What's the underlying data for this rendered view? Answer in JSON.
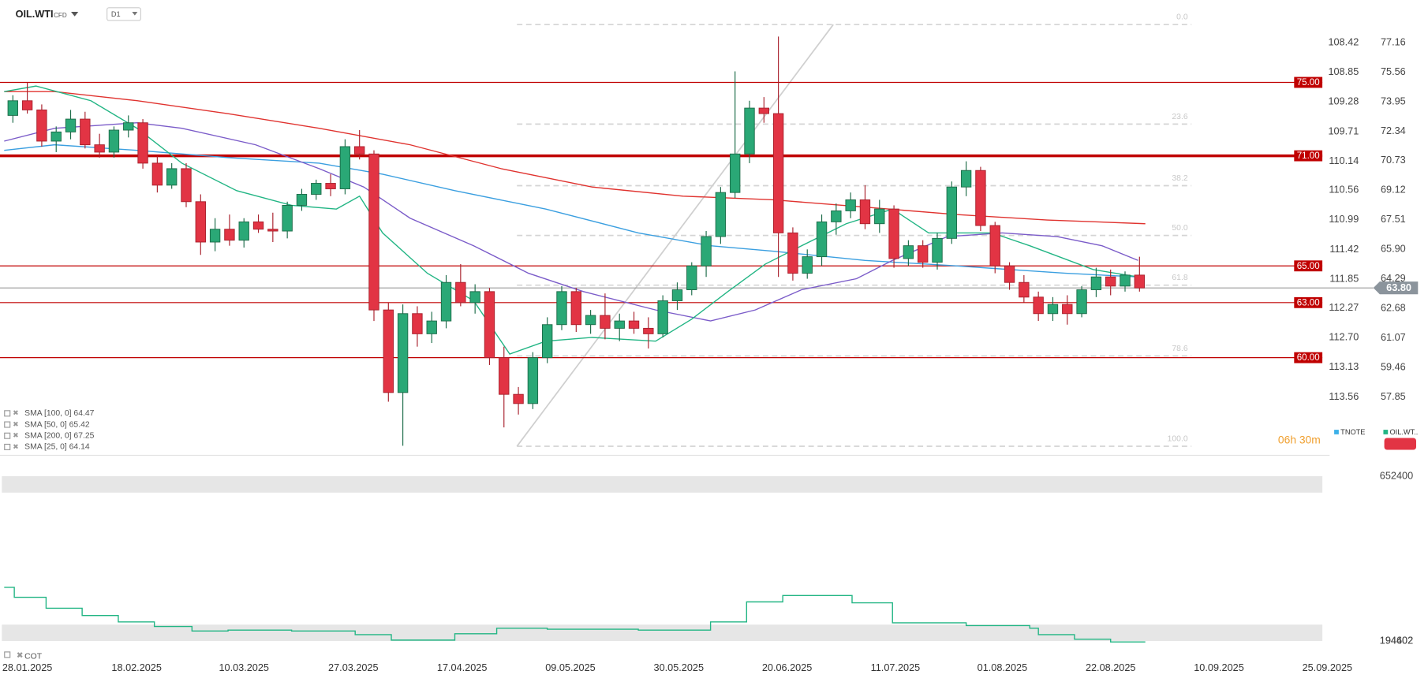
{
  "chart_data": [
    {
      "type": "candlestick",
      "symbol": "OIL.WTI",
      "instrument": "CFD",
      "timeframe": "D1",
      "up_color": "#2aa876",
      "down_color": "#e23444",
      "grid": false,
      "xlim": [
        -0.89,
        90.66
      ],
      "xticks": [
        {
          "value": 1.0,
          "label": "28.01.2025"
        },
        {
          "value": 8.57,
          "label": "18.02.2025"
        },
        {
          "value": 16.0,
          "label": "10.03.2025"
        },
        {
          "value": 23.57,
          "label": "27.03.2025"
        },
        {
          "value": 31.1,
          "label": "17.04.2025"
        },
        {
          "value": 38.6,
          "label": "09.05.2025"
        },
        {
          "value": 46.1,
          "label": "30.05.2025"
        },
        {
          "value": 53.6,
          "label": "20.06.2025"
        },
        {
          "value": 61.1,
          "label": "11.07.2025"
        },
        {
          "value": 68.5,
          "label": "01.08.2025"
        },
        {
          "value": 76.0,
          "label": "22.08.2025"
        },
        {
          "value": 83.5,
          "label": "10.09.2025"
        },
        {
          "value": 91.0,
          "label": "25.09.2025"
        }
      ],
      "ylim": [
        54.78,
        79.49
      ],
      "yticks": [
        77.16,
        75.56,
        73.95,
        72.34,
        70.73,
        69.12,
        67.51,
        {
          "value": 65.9,
          "label": "65.90"
        },
        64.29,
        62.68,
        61.07,
        59.46,
        57.85
      ],
      "y2lim": [
        114.38,
        107.8
      ],
      "y2ticks": [
        108.42,
        108.85,
        109.28,
        109.71,
        110.14,
        110.56,
        110.99,
        111.42,
        111.85,
        112.27,
        {
          "value": 112.7,
          "label": "112.70"
        },
        113.13,
        113.56
      ],
      "open": [
        73.2,
        74.0,
        73.5,
        71.8,
        72.3,
        73.0,
        71.6,
        71.2,
        72.4,
        72.8,
        70.6,
        69.4,
        70.3,
        68.5,
        66.3,
        67.0,
        66.4,
        67.4,
        67.0,
        66.9,
        68.3,
        68.9,
        69.5,
        69.2,
        71.5,
        71.1,
        62.6,
        58.1,
        62.4,
        61.3,
        62.0,
        64.1,
        63.0,
        63.6,
        60.0,
        58.0,
        57.5,
        60.0,
        61.8,
        63.6,
        61.8,
        62.3,
        61.6,
        62.0,
        61.6,
        61.3,
        63.1,
        63.7,
        65.0,
        66.6,
        69.0,
        71.1,
        73.6,
        73.3,
        66.8,
        64.6,
        65.5,
        67.4,
        68.0,
        68.6,
        67.3,
        68.1,
        65.4,
        66.1,
        65.2,
        66.5,
        69.3,
        70.2,
        67.2,
        65.0,
        64.1,
        63.3,
        62.4,
        62.9,
        62.4,
        63.7,
        64.4,
        63.9,
        64.5
      ],
      "high": [
        74.3,
        75.0,
        73.8,
        72.6,
        73.5,
        73.4,
        72.2,
        72.6,
        73.2,
        73.0,
        71.0,
        70.6,
        70.6,
        68.9,
        67.6,
        67.8,
        67.6,
        67.8,
        67.9,
        68.5,
        69.2,
        69.7,
        70.0,
        71.9,
        72.4,
        71.3,
        63.0,
        62.9,
        62.8,
        62.5,
        64.5,
        65.1,
        64.0,
        63.8,
        60.6,
        58.4,
        60.3,
        62.2,
        63.9,
        63.8,
        62.6,
        63.5,
        62.4,
        62.5,
        62.2,
        63.4,
        64.1,
        65.2,
        66.9,
        69.3,
        75.6,
        74.0,
        74.2,
        77.5,
        67.1,
        65.9,
        67.8,
        68.4,
        69.0,
        69.4,
        68.6,
        68.3,
        66.4,
        66.4,
        66.8,
        69.6,
        70.7,
        70.4,
        67.4,
        65.2,
        64.5,
        63.6,
        63.3,
        63.4,
        63.9,
        64.9,
        64.8,
        64.7,
        65.5
      ],
      "low": [
        72.8,
        73.3,
        71.5,
        71.2,
        71.9,
        71.4,
        70.9,
        70.9,
        72.0,
        70.3,
        69.0,
        69.2,
        68.2,
        65.6,
        65.8,
        66.1,
        66.0,
        66.8,
        66.3,
        66.5,
        68.0,
        68.6,
        68.8,
        68.9,
        70.8,
        62.0,
        57.6,
        55.2,
        60.6,
        60.8,
        61.6,
        62.8,
        62.4,
        59.6,
        56.2,
        56.9,
        57.2,
        59.7,
        61.5,
        61.4,
        61.3,
        61.0,
        60.9,
        61.3,
        60.5,
        61.1,
        62.6,
        63.4,
        64.4,
        66.2,
        68.7,
        70.6,
        72.8,
        64.4,
        64.2,
        64.3,
        65.0,
        66.7,
        67.6,
        67.0,
        66.8,
        64.9,
        65.0,
        64.9,
        64.8,
        66.2,
        68.8,
        66.9,
        64.6,
        63.7,
        63.0,
        62.0,
        62.0,
        61.8,
        62.2,
        63.3,
        63.4,
        63.6,
        63.6
      ],
      "close": [
        74.0,
        73.5,
        71.8,
        72.3,
        73.0,
        71.6,
        71.2,
        72.4,
        72.8,
        70.6,
        69.4,
        70.3,
        68.5,
        66.3,
        67.0,
        66.4,
        67.4,
        67.0,
        66.9,
        68.3,
        68.9,
        69.5,
        69.2,
        71.5,
        71.1,
        62.6,
        58.1,
        62.4,
        61.3,
        62.0,
        64.1,
        63.0,
        63.6,
        60.0,
        58.0,
        57.5,
        60.0,
        61.8,
        63.6,
        61.8,
        62.3,
        61.6,
        62.0,
        61.6,
        61.3,
        63.1,
        63.7,
        65.0,
        66.6,
        69.0,
        71.1,
        73.6,
        73.3,
        66.8,
        64.6,
        65.5,
        67.4,
        68.0,
        68.6,
        67.3,
        68.1,
        65.4,
        66.1,
        65.2,
        66.5,
        69.3,
        70.2,
        67.2,
        65.0,
        64.1,
        63.3,
        62.4,
        62.9,
        62.4,
        63.7,
        64.4,
        63.9,
        64.5,
        63.8
      ],
      "series": [
        {
          "name": "SMA [100, 0] 64.47",
          "color": "#3b9fe0",
          "x": [
            -0.6,
            2.9,
            8.6,
            14.9,
            21.2,
            25.6,
            30.6,
            36.9,
            43.3,
            48.3,
            52.7,
            59.0,
            65.3,
            69.1,
            72.9,
            77.9
          ],
          "values": [
            71.3,
            71.6,
            71.3,
            70.9,
            70.6,
            70.0,
            69.1,
            68.1,
            66.8,
            66.1,
            65.8,
            65.3,
            65.0,
            64.8,
            64.6,
            64.4
          ]
        },
        {
          "name": "SMA [50, 0] 65.42",
          "color": "#7b5cc9",
          "x": [
            -0.6,
            2.9,
            8.6,
            11.7,
            16.8,
            21.2,
            24.3,
            27.5,
            31.9,
            35.7,
            39.5,
            44.5,
            48.3,
            51.4,
            54.6,
            58.4,
            60.9,
            64.7,
            68.5,
            72.3,
            75.4,
            77.9
          ],
          "values": [
            71.8,
            72.5,
            72.8,
            72.5,
            71.6,
            70.3,
            69.3,
            67.6,
            66.1,
            64.6,
            63.6,
            62.6,
            62.0,
            62.6,
            63.7,
            64.3,
            65.3,
            66.6,
            66.8,
            66.6,
            66.1,
            65.3
          ]
        },
        {
          "name": "SMA [200, 0] 67.25",
          "color": "#e0332f",
          "x": [
            -0.6,
            2.9,
            8.6,
            14.9,
            21.2,
            27.5,
            33.8,
            40.1,
            46.4,
            52.7,
            59.0,
            65.3,
            71.6,
            78.4
          ],
          "values": [
            74.5,
            74.5,
            74.0,
            73.3,
            72.5,
            71.6,
            70.3,
            69.3,
            68.8,
            68.6,
            68.2,
            67.8,
            67.5,
            67.3
          ]
        },
        {
          "name": "SMA [25, 0] 64.14",
          "color": "#22b584",
          "x": [
            -0.6,
            1.6,
            5.4,
            8.6,
            11.7,
            15.5,
            19.3,
            22.4,
            24.0,
            25.6,
            28.7,
            31.9,
            34.4,
            36.9,
            40.1,
            44.5,
            47.0,
            49.5,
            52.1,
            54.6,
            57.7,
            60.9,
            63.4,
            65.9,
            67.8,
            70.4,
            74.8,
            77.9
          ],
          "values": [
            74.5,
            74.8,
            74.0,
            72.5,
            70.6,
            69.1,
            68.3,
            68.1,
            68.8,
            66.8,
            64.6,
            63.1,
            60.2,
            60.9,
            61.1,
            60.9,
            62.1,
            63.6,
            65.1,
            66.1,
            67.3,
            68.1,
            66.8,
            66.8,
            66.8,
            66.1,
            64.8,
            64.4
          ]
        }
      ],
      "levels": [
        {
          "value": 75,
          "label": "75.00",
          "bold": false
        },
        {
          "value": 71,
          "label": "71.00",
          "bold": true
        },
        {
          "value": 65,
          "label": "65.00",
          "bold": false
        },
        {
          "value": 63,
          "label": "63.00",
          "bold": false
        },
        {
          "value": 60,
          "label": "60.00",
          "bold": false
        }
      ],
      "level_color": "#c00000",
      "current_price": {
        "value": 63.8,
        "label": "63.80"
      },
      "fib_xlim": [
        34.9,
        81.6
      ],
      "fib_levels": [
        {
          "value": 78.15,
          "label": "0.0"
        },
        {
          "value": 72.73,
          "label": "23.6"
        },
        {
          "value": 69.37,
          "label": "38.2"
        },
        {
          "value": 66.66,
          "label": "50.0"
        },
        {
          "value": 63.95,
          "label": "61.8"
        },
        {
          "value": 60.09,
          "label": "78.6"
        },
        {
          "value": 55.17,
          "label": "100.0"
        }
      ],
      "trend_line": {
        "x": [
          34.9,
          56.8
        ],
        "values": [
          55.17,
          78.15
        ]
      },
      "countdown": "06h 30m",
      "overlay_legend": [
        {
          "name": "TNOTE",
          "color": "#3bb0e8"
        },
        {
          "name": "OIL.WT..",
          "color": "#22b584"
        }
      ]
    },
    {
      "type": "line",
      "name": "COT",
      "color": "#22b584",
      "step": true,
      "ylim": [
        179290,
        710590
      ],
      "yticks": [
        652400,
        194402,
        194602
      ],
      "x": [
        -0.6,
        0.1,
        2.3,
        4.8,
        7.3,
        9.8,
        12.4,
        14.9,
        19.3,
        23.7,
        26.2,
        28.8,
        30.6,
        33.5,
        37.0,
        43.3,
        48.3,
        50.8,
        53.3,
        58.1,
        60.9,
        66.0,
        70.4,
        71.0,
        73.5,
        76.0,
        78.4
      ],
      "values": [
        343700,
        315900,
        285500,
        265300,
        247600,
        234900,
        222300,
        224800,
        222300,
        212200,
        197000,
        197000,
        214700,
        229900,
        227400,
        224800,
        247600,
        303200,
        320900,
        300700,
        245000,
        237500,
        229900,
        212200,
        199500,
        191900,
        191900
      ]
    }
  ]
}
